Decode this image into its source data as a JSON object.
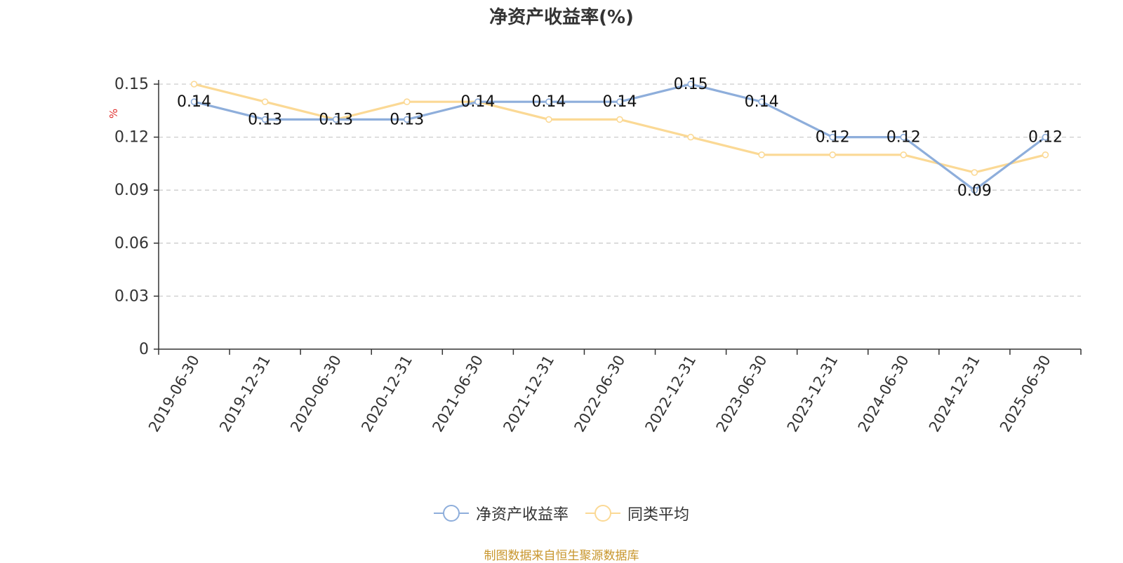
{
  "chart_data": {
    "type": "line",
    "title": "净资产收益率(%)",
    "ylabel": "%",
    "xlabel": "",
    "categories": [
      "2019-06-30",
      "2019-12-31",
      "2020-06-30",
      "2020-12-31",
      "2021-06-30",
      "2021-12-31",
      "2022-06-30",
      "2022-12-31",
      "2023-06-30",
      "2023-12-31",
      "2024-06-30",
      "2024-12-31",
      "2025-06-30"
    ],
    "y_ticks": [
      "0",
      "0.03",
      "0.06",
      "0.09",
      "0.12",
      "0.15"
    ],
    "ylim": [
      0,
      0.15
    ],
    "grid": true,
    "legend_position": "bottom",
    "series": [
      {
        "name": "净资产收益率",
        "color": "#8eaedb",
        "values": [
          0.14,
          0.13,
          0.13,
          0.13,
          0.14,
          0.14,
          0.14,
          0.15,
          0.14,
          0.12,
          0.12,
          0.09,
          0.12
        ],
        "labels": [
          "0.14",
          "0.13",
          "0.13",
          "0.13",
          "0.14",
          "0.14",
          "0.14",
          "0.15",
          "0.14",
          "0.12",
          "0.12",
          "0.09",
          "0.12"
        ],
        "label_side": [
          "above",
          "above",
          "above",
          "above",
          "above",
          "above",
          "above",
          "above",
          "above",
          "above",
          "above",
          "below",
          "above"
        ]
      },
      {
        "name": "同类平均",
        "color": "#fbd995",
        "values": [
          0.15,
          0.14,
          0.13,
          0.14,
          0.14,
          0.13,
          0.13,
          0.12,
          0.11,
          0.11,
          0.11,
          0.1,
          0.11
        ]
      }
    ]
  },
  "source": "制图数据来自恒生聚源数据库"
}
